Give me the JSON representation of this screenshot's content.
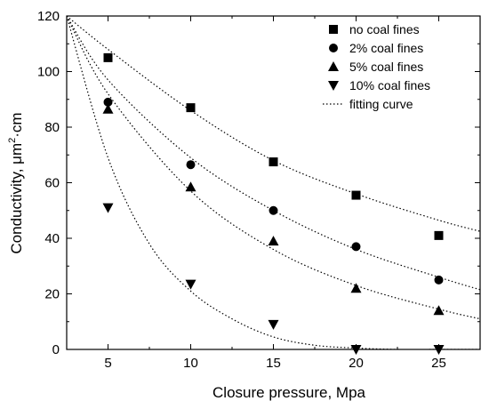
{
  "chart_data": {
    "type": "scatter",
    "xlabel": "Closure pressure, Mpa",
    "ylabel_parts": [
      "Conductivity, ",
      "μm",
      "2",
      "·cm"
    ],
    "xlim": [
      2.5,
      27.5
    ],
    "ylim": [
      0,
      120
    ],
    "x_ticks": [
      "5",
      "10",
      "15",
      "20",
      "25"
    ],
    "y_ticks": [
      "0",
      "20",
      "40",
      "60",
      "80",
      "100",
      "120"
    ],
    "legend_position": "top-right",
    "grid": false,
    "series": [
      {
        "name": "no coal fines",
        "marker": "square",
        "x": [
          5,
          10,
          15,
          20,
          25
        ],
        "y": [
          105,
          87,
          67.5,
          55.5,
          41
        ],
        "fit": {
          "x": [
            2.5,
            5,
            10,
            15,
            20,
            25,
            27.5
          ],
          "y": [
            120,
            108,
            86,
            68,
            56,
            46.5,
            42.5
          ]
        }
      },
      {
        "name": "2% coal fines",
        "marker": "circle",
        "x": [
          5,
          10,
          15,
          20,
          25
        ],
        "y": [
          89,
          66.5,
          50,
          37,
          25
        ],
        "fit": {
          "x": [
            2.5,
            5,
            10,
            15,
            20,
            25,
            27.5
          ],
          "y": [
            120,
            97,
            69,
            50,
            36,
            26,
            21.5
          ]
        }
      },
      {
        "name": "5% coal fines",
        "marker": "triangle-up",
        "x": [
          5,
          10,
          15,
          20,
          25
        ],
        "y": [
          86.5,
          58.5,
          39,
          22,
          14
        ],
        "fit": {
          "x": [
            2.5,
            5,
            10,
            15,
            20,
            25,
            27.5
          ],
          "y": [
            120,
            92,
            57,
            36,
            23,
            14.5,
            11
          ]
        }
      },
      {
        "name": "10% coal fines",
        "marker": "triangle-down",
        "x": [
          5,
          10,
          15,
          20,
          25
        ],
        "y": [
          51,
          23.5,
          9,
          0,
          0
        ],
        "fit": {
          "x": [
            2.5,
            5,
            7.5,
            10,
            12.5,
            15,
            17.5,
            20,
            22.5,
            25,
            27.5
          ],
          "y": [
            120,
            69,
            38,
            21,
            11,
            4.5,
            1.5,
            0.5,
            0,
            0,
            0
          ]
        }
      }
    ],
    "fit_legend": "fitting curve",
    "colors": {
      "marker": "#000000",
      "axis": "#000000"
    }
  }
}
